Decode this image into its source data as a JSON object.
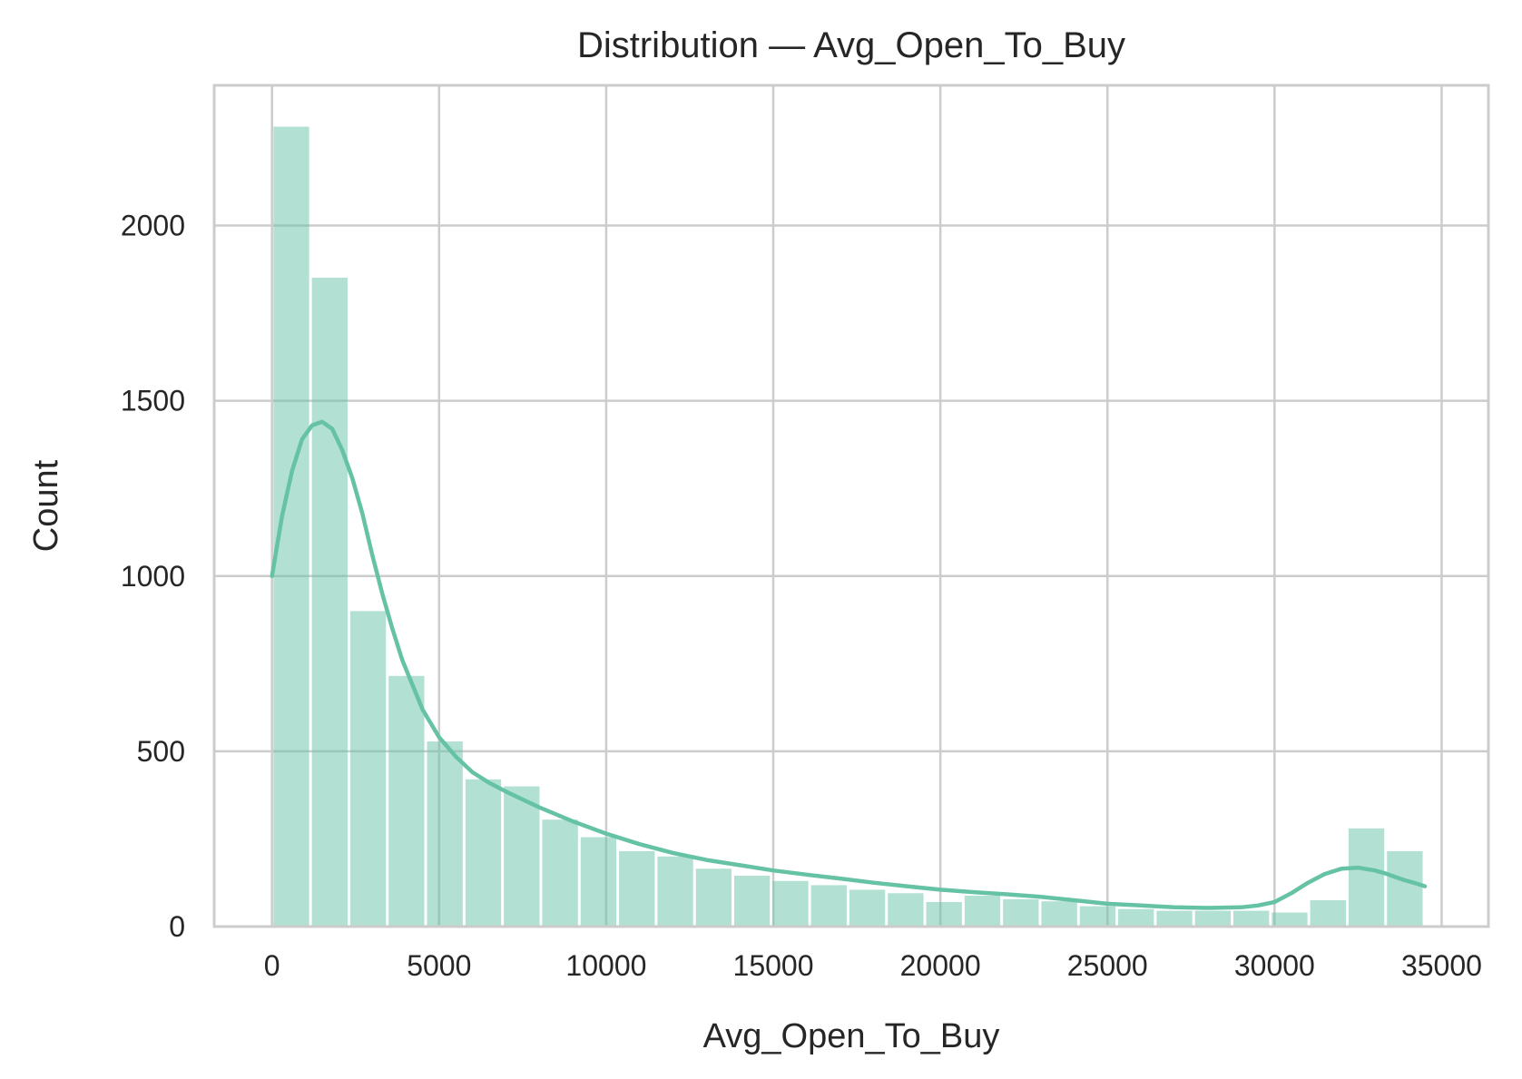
{
  "chart_data": {
    "type": "bar",
    "title": "Distribution — Avg_Open_To_Buy",
    "xlabel": "Avg_Open_To_Buy",
    "ylabel": "Count",
    "xlim": [
      -1730,
      36400
    ],
    "ylim": [
      0,
      2400
    ],
    "xticks": [
      0,
      5000,
      10000,
      15000,
      20000,
      25000,
      30000,
      35000
    ],
    "yticks": [
      0,
      500,
      1000,
      1500,
      2000
    ],
    "grid": true,
    "bar_color": "#66c2a5",
    "bar_opacity": 0.5,
    "kde_color": "#66c2a5",
    "bin_start": 3,
    "bin_width": 1149,
    "values": [
      2282,
      1851,
      900,
      715,
      528,
      420,
      400,
      305,
      255,
      215,
      200,
      165,
      145,
      130,
      118,
      105,
      95,
      70,
      88,
      78,
      72,
      58,
      50,
      45,
      45,
      45,
      40,
      75,
      280,
      215
    ],
    "kde": {
      "x": [
        0,
        300,
        600,
        900,
        1200,
        1500,
        1800,
        2100,
        2400,
        2700,
        3000,
        3300,
        3600,
        3900,
        4200,
        4500,
        5000,
        5500,
        6000,
        6500,
        7000,
        8000,
        9000,
        10000,
        11000,
        12000,
        13000,
        14000,
        15000,
        16000,
        17000,
        18000,
        19000,
        20000,
        21000,
        22000,
        23000,
        24000,
        25000,
        26000,
        27000,
        28000,
        29000,
        29500,
        30000,
        30500,
        31000,
        31500,
        32000,
        32500,
        33000,
        33300,
        33600,
        33900,
        34200,
        34500
      ],
      "y": [
        1000,
        1170,
        1300,
        1390,
        1430,
        1440,
        1420,
        1360,
        1280,
        1180,
        1060,
        950,
        850,
        760,
        690,
        620,
        540,
        485,
        440,
        410,
        385,
        340,
        300,
        265,
        235,
        210,
        190,
        175,
        160,
        148,
        137,
        125,
        115,
        105,
        98,
        92,
        85,
        75,
        65,
        60,
        55,
        53,
        55,
        60,
        70,
        95,
        125,
        150,
        165,
        168,
        160,
        152,
        142,
        132,
        124,
        115
      ]
    }
  }
}
